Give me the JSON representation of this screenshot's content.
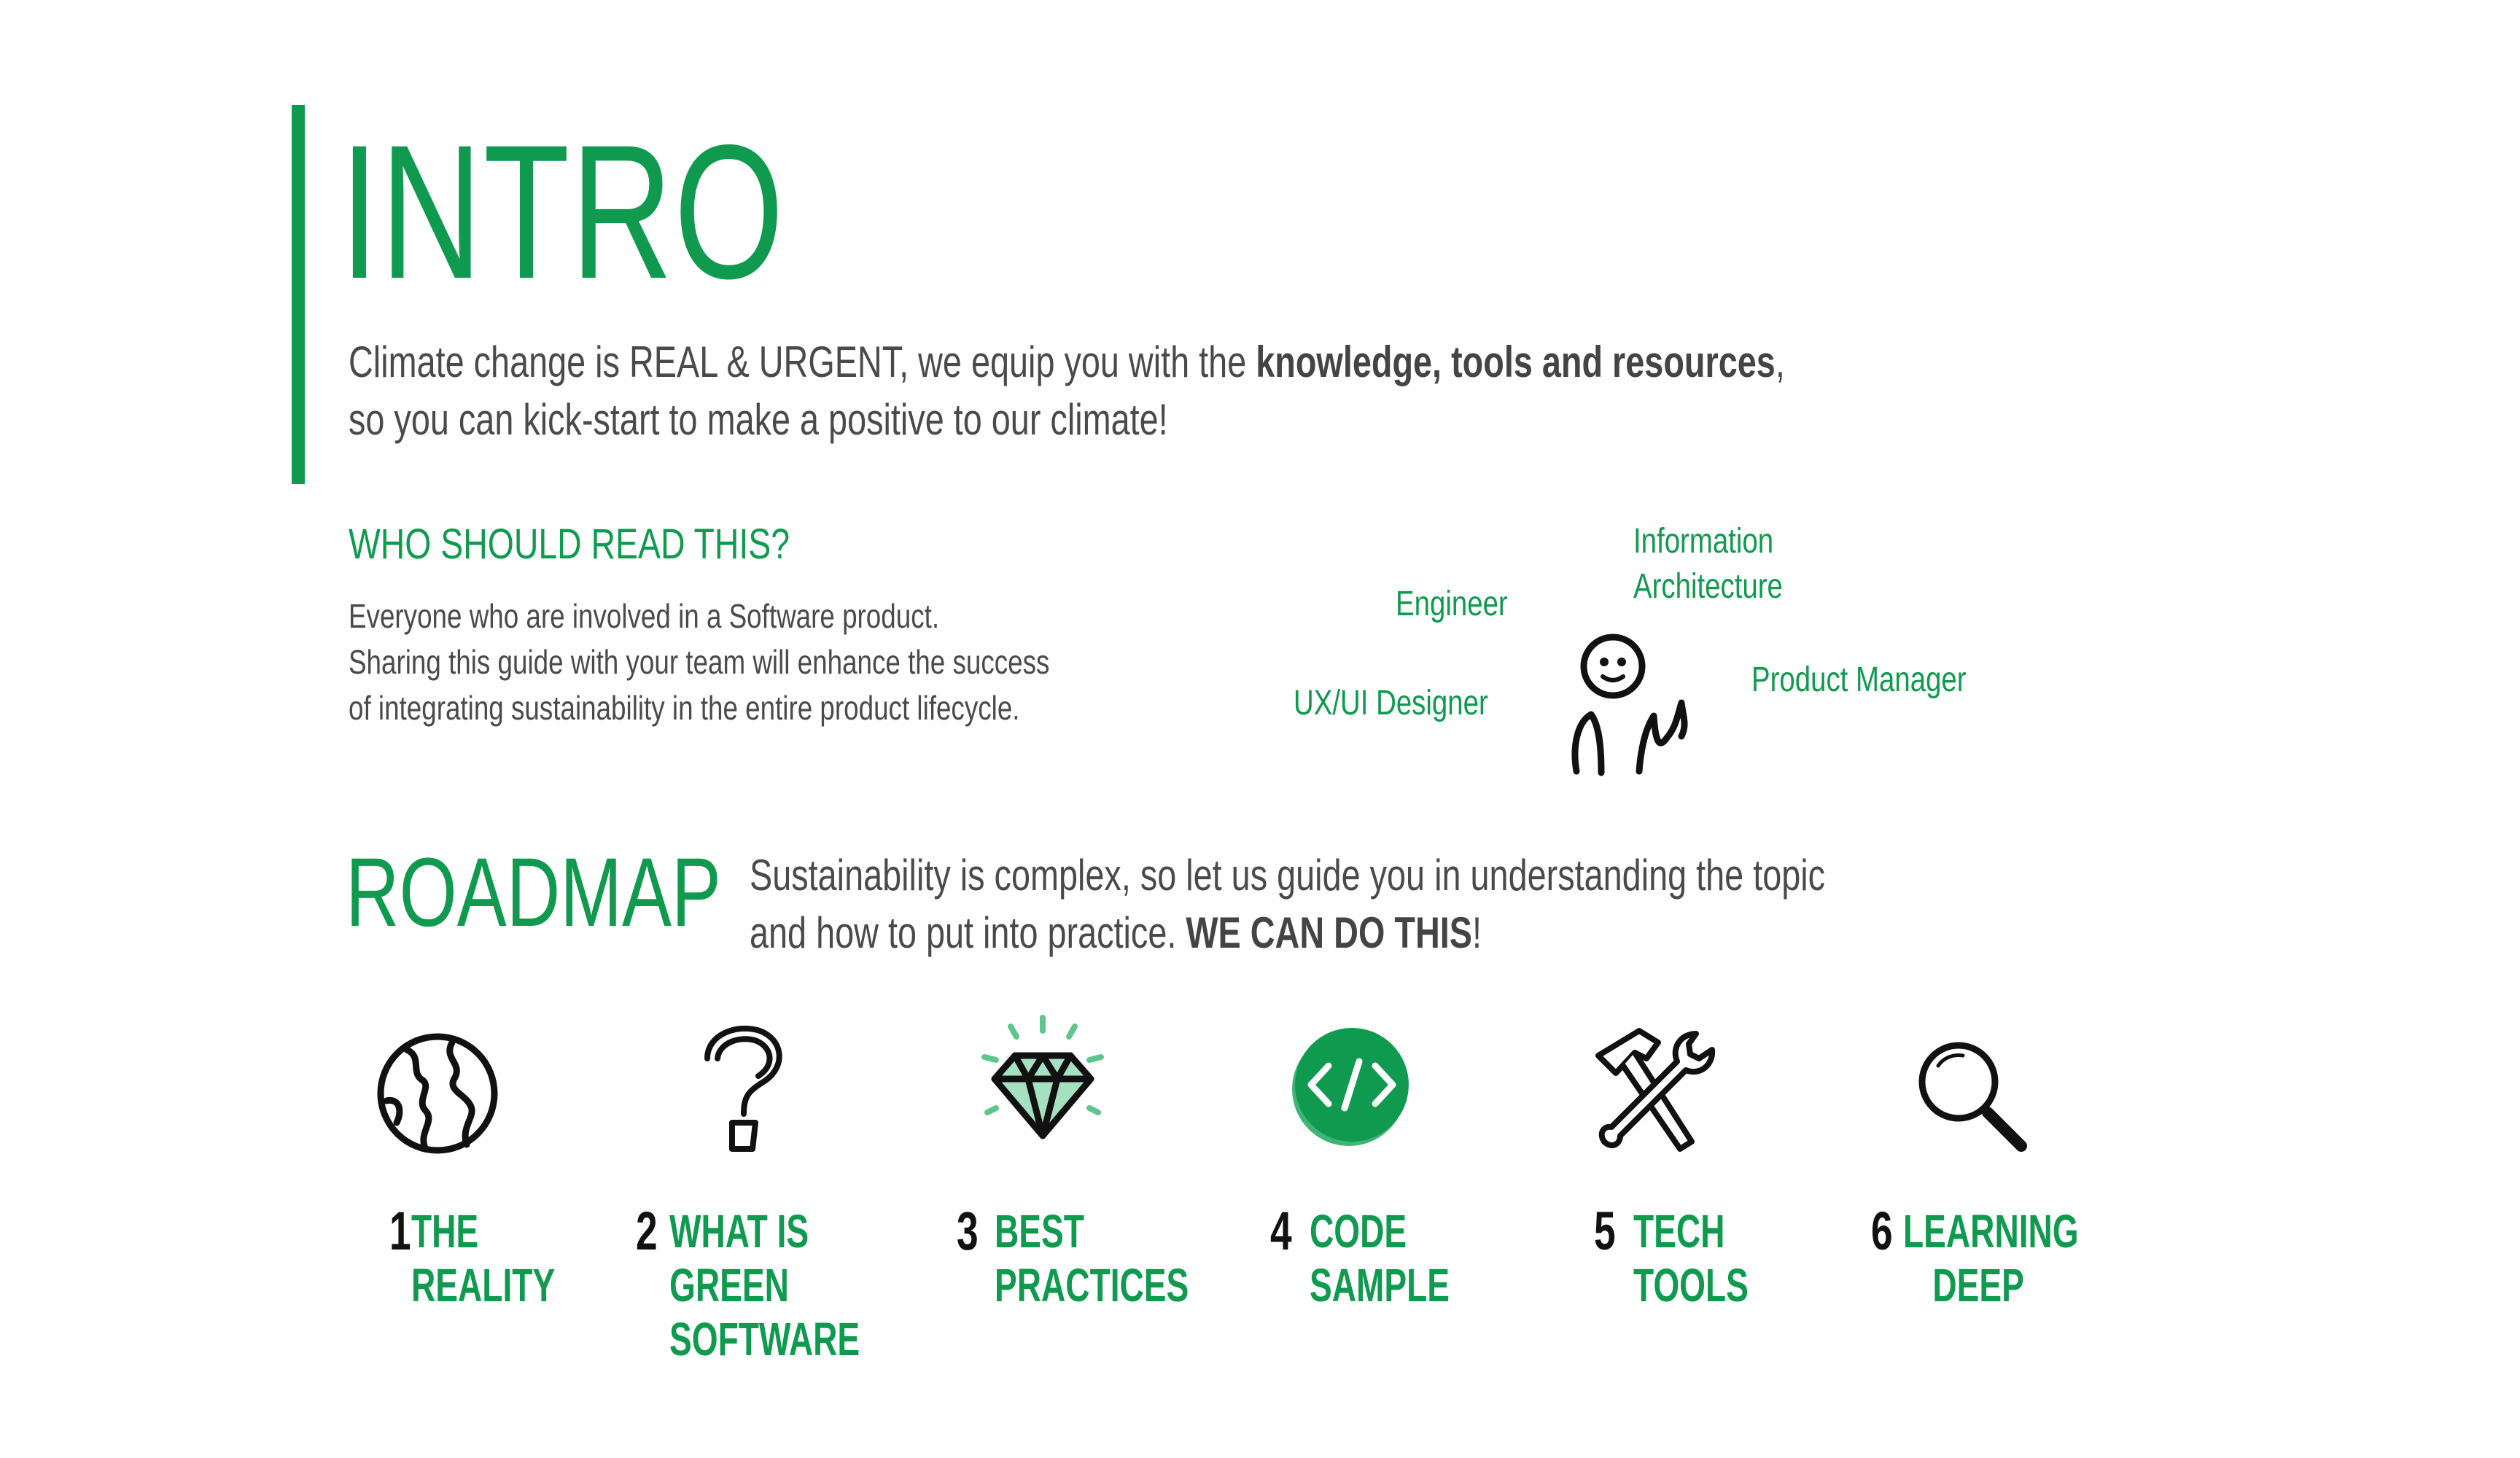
{
  "intro": {
    "title": "INTRO",
    "line1_pre": "Climate change is REAL & URGENT, we equip you with the ",
    "line1_bold": "knowledge, tools and resources",
    "line1_post": ",",
    "line2": "so you can kick-start to make a  positive to our climate!"
  },
  "who": {
    "heading": "WHO SHOULD READ THIS?",
    "lines": [
      "Everyone who are involved in a Software product.",
      "Sharing this guide with your team will enhance the success",
      "of integrating sustainability in the entire product lifecycle."
    ]
  },
  "roles": {
    "information_architecture": [
      "Information",
      "Architecture"
    ],
    "engineer": "Engineer",
    "product_manager": "Product Manager",
    "ux_ui_designer": "UX/UI Designer",
    "icon": "person-thumbs-up-icon"
  },
  "roadmap": {
    "title": "ROADMAP",
    "line1": "Sustainability is complex, so let us guide you in understanding the topic",
    "line2_pre": "and how to put into practice. ",
    "line2_bold": "WE CAN DO THIS",
    "line2_post": "!"
  },
  "steps": [
    {
      "number": "1",
      "label": [
        "THE",
        "REALITY"
      ],
      "icon": "globe-icon"
    },
    {
      "number": "2",
      "label": [
        "WHAT IS",
        "GREEN",
        "SOFTWARE"
      ],
      "icon": "question-mark-icon"
    },
    {
      "number": "3",
      "label": [
        "BEST",
        "PRACTICES"
      ],
      "icon": "diamond-icon"
    },
    {
      "number": "4",
      "label": [
        "CODE",
        "SAMPLE"
      ],
      "icon": "code-icon"
    },
    {
      "number": "5",
      "label": [
        "TECH",
        "TOOLS"
      ],
      "icon": "tools-icon"
    },
    {
      "number": "6",
      "label": [
        "LEARNING",
        "DEEP"
      ],
      "icon": "magnifier-icon"
    }
  ],
  "colors": {
    "accent": "#0f9a4f",
    "text": "#4a4a4a",
    "number": "#111111",
    "background": "#ffffff"
  }
}
